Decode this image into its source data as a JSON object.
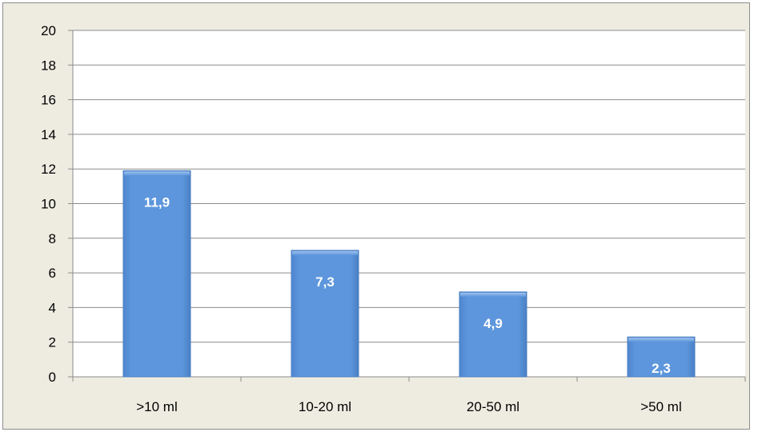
{
  "chart_data": {
    "type": "bar",
    "title": "",
    "xlabel": "",
    "ylabel": "",
    "categories": [
      ">10 ml",
      "10-20 ml",
      "20-50 ml",
      ">50 ml"
    ],
    "values": [
      11.9,
      7.3,
      4.9,
      2.3
    ],
    "data_labels": [
      "11,9",
      "7,3",
      "4,9",
      "2,3"
    ],
    "ylim": [
      0,
      20
    ],
    "ytick_step": 2,
    "yticks": [
      "0",
      "2",
      "4",
      "6",
      "8",
      "10",
      "12",
      "14",
      "16",
      "18",
      "20"
    ],
    "grid": true,
    "legend": "none",
    "colors": {
      "bar_fill": "#5b93d9",
      "bar_edge": "#4a7fc0",
      "background": "#eeece1",
      "plot_area": "#ffffff",
      "gridline": "#8c8c8c",
      "frame_border": "#8c8c8c"
    }
  }
}
